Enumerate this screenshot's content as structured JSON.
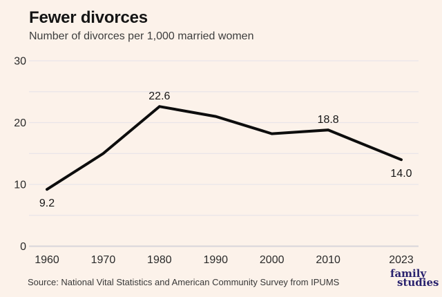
{
  "header": {
    "title": "Fewer divorces",
    "subtitle": "Number of divorces per 1,000 married women"
  },
  "footer": {
    "source": "Source: National Vital Statistics and American Community Survey from IPUMS",
    "logo_line1": "family",
    "logo_line2": "studies"
  },
  "colors": {
    "background": "#fcf2ea",
    "line": "#0d0d0d",
    "grid": "#e9e5e9",
    "axis": "#d8d5da",
    "logo": "#29226e"
  },
  "chart_data": {
    "type": "line",
    "title": "Fewer divorces",
    "subtitle": "Number of divorces per 1,000 married women",
    "x": [
      1960,
      1970,
      1980,
      1990,
      2000,
      2010,
      2023
    ],
    "values": [
      9.2,
      15.0,
      22.6,
      21.0,
      18.2,
      18.8,
      14.0
    ],
    "labeled_points": [
      {
        "x": 1960,
        "label": "9.2",
        "position": "below"
      },
      {
        "x": 1980,
        "label": "22.6",
        "position": "above"
      },
      {
        "x": 2010,
        "label": "18.8",
        "position": "above"
      },
      {
        "x": 2023,
        "label": "14.0",
        "position": "below"
      }
    ],
    "x_tick_labels": [
      "1960",
      "1970",
      "1980",
      "1990",
      "2000",
      "2010",
      "2023"
    ],
    "y_tick_labels": [
      "0",
      "10",
      "20",
      "30"
    ],
    "y_gridline_values": [
      0,
      5,
      10,
      15,
      20,
      25,
      30
    ],
    "xlim": [
      1960,
      2023
    ],
    "ylim": [
      0,
      30
    ],
    "grid": "horizontal-only",
    "legend": "none"
  }
}
